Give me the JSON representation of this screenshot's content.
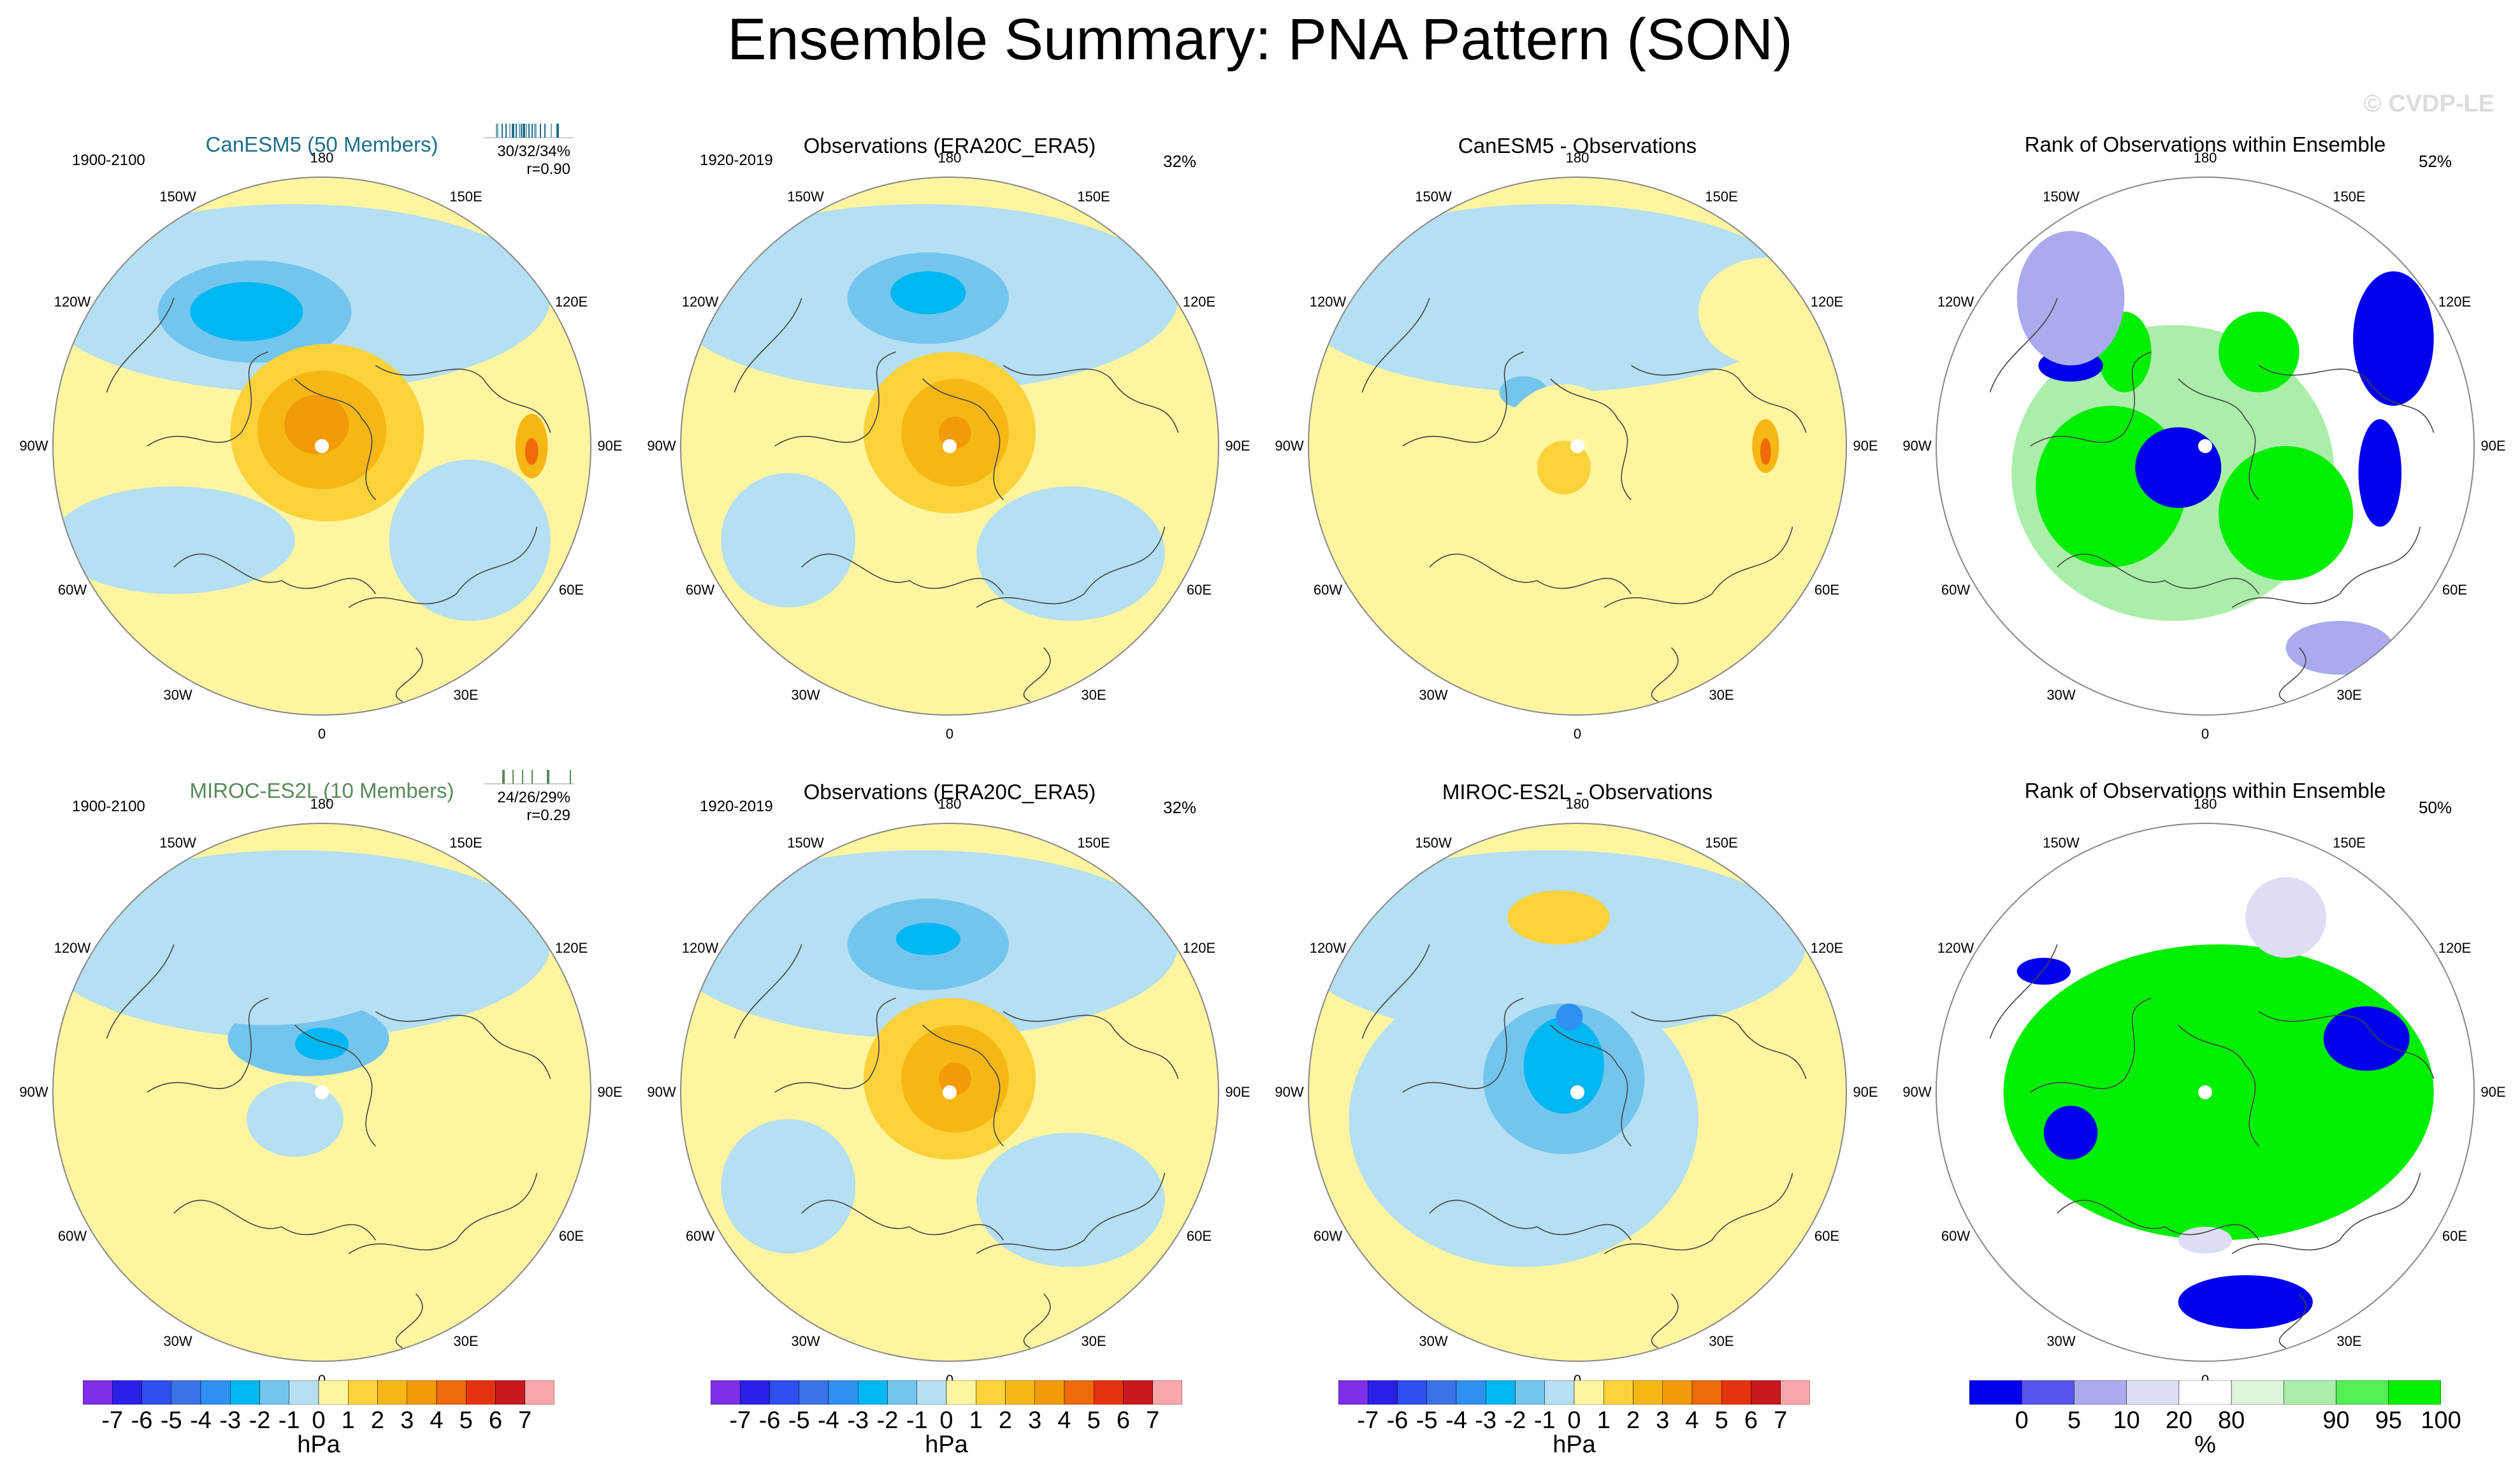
{
  "title": "Ensemble Summary: PNA Pattern (SON)",
  "copyright": "© CVDP-LE",
  "rows": [
    {
      "panels": [
        {
          "title": "CanESM5 (50 Members)",
          "style": "model1",
          "period": "1900-2100",
          "stat1": "30/32/34%",
          "stat2": "r=0.90",
          "kind": "anom"
        },
        {
          "title": "Observations (ERA20C_ERA5)",
          "period": "1920-2019",
          "pct": "32%",
          "kind": "anom"
        },
        {
          "title": "CanESM5 - Observations",
          "kind": "diff"
        },
        {
          "title": "Rank of Observations within Ensemble",
          "pct": "52%",
          "kind": "rank"
        }
      ]
    },
    {
      "panels": [
        {
          "title": "MIROC-ES2L (10 Members)",
          "style": "model2",
          "period": "1900-2100",
          "stat1": "24/26/29%",
          "stat2": "r=0.29",
          "kind": "anom"
        },
        {
          "title": "Observations (ERA20C_ERA5)",
          "period": "1920-2019",
          "pct": "32%",
          "kind": "anom"
        },
        {
          "title": "MIROC-ES2L - Observations",
          "kind": "diff"
        },
        {
          "title": "Rank of Observations within Ensemble",
          "pct": "50%",
          "kind": "rank"
        }
      ]
    }
  ],
  "lon_labels": [
    "180",
    "150E",
    "120E",
    "90E",
    "60E",
    "30E",
    "0",
    "30W",
    "60W",
    "90W",
    "120W",
    "150W"
  ],
  "colorbar_hpa": {
    "ticks": [
      "-7",
      "-6",
      "-5",
      "-4",
      "-3",
      "-2",
      "-1",
      "0",
      "1",
      "2",
      "3",
      "4",
      "5",
      "6",
      "7"
    ],
    "unit": "hPa",
    "colors": [
      "#7d2ee6",
      "#2a1fe8",
      "#2e4ef0",
      "#3a72e8",
      "#2f90f0",
      "#00b7f2",
      "#74c5ee",
      "#b5dff2",
      "#fff5a0",
      "#fbd23a",
      "#f6b714",
      "#f29a07",
      "#ef6a0a",
      "#e6330f",
      "#c8191e",
      "#f8a8a8"
    ]
  },
  "colorbar_rank": {
    "ticks": [
      "0",
      "5",
      "10",
      "20",
      "80",
      "90",
      "95",
      "100"
    ],
    "unit": "%",
    "colors": [
      "#0000ee",
      "#5555ee",
      "#aaaaee",
      "#ddddf5",
      "#ffffff",
      "#ddf5dd",
      "#aaeeaa",
      "#55ee55",
      "#00ee00"
    ]
  },
  "chart_data": [
    {
      "type": "heatmap",
      "title": "CanESM5 (50 Members)",
      "subtitle": "1900-2100",
      "annotations": [
        "30/32/34%",
        "r=0.90"
      ],
      "units": "hPa",
      "range": [
        -7,
        7
      ],
      "projection": "north polar stereographic"
    },
    {
      "type": "heatmap",
      "title": "Observations (ERA20C_ERA5)",
      "subtitle": "1920-2019",
      "annotations": [
        "32%"
      ],
      "units": "hPa",
      "range": [
        -7,
        7
      ]
    },
    {
      "type": "heatmap",
      "title": "CanESM5 - Observations",
      "units": "hPa",
      "range": [
        -7,
        7
      ]
    },
    {
      "type": "heatmap",
      "title": "Rank of Observations within Ensemble",
      "annotations": [
        "52%"
      ],
      "units": "%",
      "range": [
        0,
        100
      ]
    },
    {
      "type": "heatmap",
      "title": "MIROC-ES2L (10 Members)",
      "subtitle": "1900-2100",
      "annotations": [
        "24/26/29%",
        "r=0.29"
      ],
      "units": "hPa",
      "range": [
        -7,
        7
      ]
    },
    {
      "type": "heatmap",
      "title": "Observations (ERA20C_ERA5)",
      "subtitle": "1920-2019",
      "annotations": [
        "32%"
      ],
      "units": "hPa",
      "range": [
        -7,
        7
      ]
    },
    {
      "type": "heatmap",
      "title": "MIROC-ES2L - Observations",
      "units": "hPa",
      "range": [
        -7,
        7
      ]
    },
    {
      "type": "heatmap",
      "title": "Rank of Observations within Ensemble",
      "annotations": [
        "50%"
      ],
      "units": "%",
      "range": [
        0,
        100
      ]
    }
  ]
}
